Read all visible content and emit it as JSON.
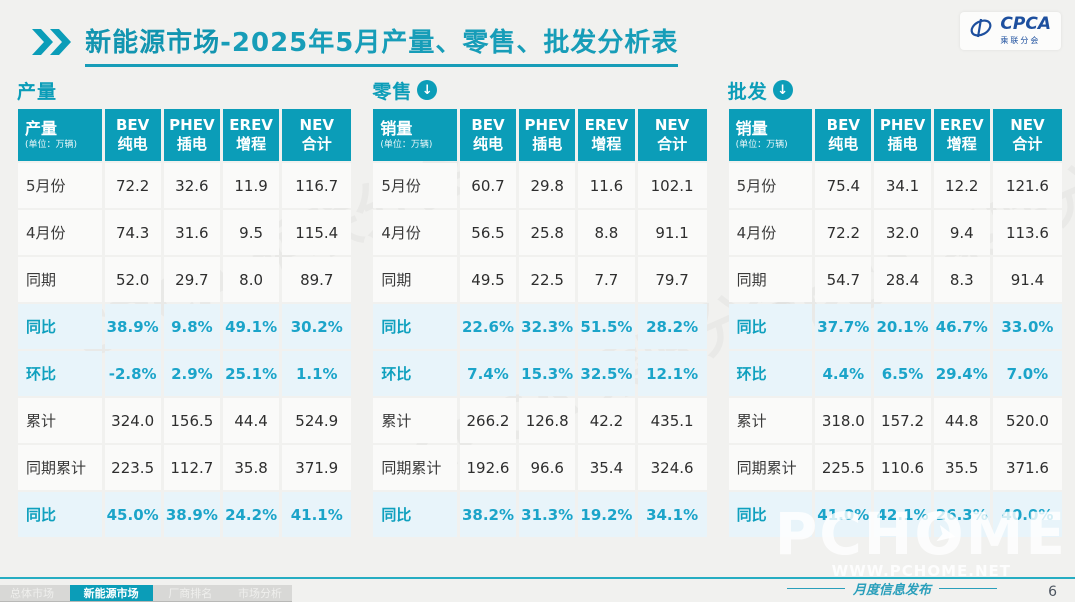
{
  "accent_color": "#0b9db8",
  "percent_text_color": "#1ba4c9",
  "percent_row_bg": "#e8f4fa",
  "header": {
    "title_bold": "新能源市场",
    "title_rest": "-2025年5月产量、零售、批发分析表",
    "logo_text": "CPCA",
    "logo_subtext": "乘联分会"
  },
  "table_columns": [
    {
      "line1": "BEV",
      "line2": "纯电"
    },
    {
      "line1": "PHEV",
      "line2": "插电"
    },
    {
      "line1": "EREV",
      "line2": "增程"
    },
    {
      "line1": "NEV",
      "line2": "合计"
    }
  ],
  "tables": [
    {
      "section_label": "产量",
      "arrow_icon": false,
      "corner_title": "产量",
      "corner_unit": "(单位：万辆)",
      "rows": [
        {
          "label": "5月份",
          "pct": false,
          "values": [
            "72.2",
            "32.6",
            "11.9",
            "116.7"
          ]
        },
        {
          "label": "4月份",
          "pct": false,
          "values": [
            "74.3",
            "31.6",
            "9.5",
            "115.4"
          ]
        },
        {
          "label": "同期",
          "pct": false,
          "values": [
            "52.0",
            "29.7",
            "8.0",
            "89.7"
          ]
        },
        {
          "label": "同比",
          "pct": true,
          "values": [
            "38.9%",
            "9.8%",
            "49.1%",
            "30.2%"
          ]
        },
        {
          "label": "环比",
          "pct": true,
          "values": [
            "-2.8%",
            "2.9%",
            "25.1%",
            "1.1%"
          ]
        },
        {
          "label": "累计",
          "pct": false,
          "values": [
            "324.0",
            "156.5",
            "44.4",
            "524.9"
          ]
        },
        {
          "label": "同期累计",
          "pct": false,
          "values": [
            "223.5",
            "112.7",
            "35.8",
            "371.9"
          ]
        },
        {
          "label": "同比",
          "pct": true,
          "values": [
            "45.0%",
            "38.9%",
            "24.2%",
            "41.1%"
          ]
        }
      ]
    },
    {
      "section_label": "零售",
      "arrow_icon": true,
      "corner_title": "销量",
      "corner_unit": "(单位：万辆)",
      "rows": [
        {
          "label": "5月份",
          "pct": false,
          "values": [
            "60.7",
            "29.8",
            "11.6",
            "102.1"
          ]
        },
        {
          "label": "4月份",
          "pct": false,
          "values": [
            "56.5",
            "25.8",
            "8.8",
            "91.1"
          ]
        },
        {
          "label": "同期",
          "pct": false,
          "values": [
            "49.5",
            "22.5",
            "7.7",
            "79.7"
          ]
        },
        {
          "label": "同比",
          "pct": true,
          "values": [
            "22.6%",
            "32.3%",
            "51.5%",
            "28.2%"
          ]
        },
        {
          "label": "环比",
          "pct": true,
          "values": [
            "7.4%",
            "15.3%",
            "32.5%",
            "12.1%"
          ]
        },
        {
          "label": "累计",
          "pct": false,
          "values": [
            "266.2",
            "126.8",
            "42.2",
            "435.1"
          ]
        },
        {
          "label": "同期累计",
          "pct": false,
          "values": [
            "192.6",
            "96.6",
            "35.4",
            "324.6"
          ]
        },
        {
          "label": "同比",
          "pct": true,
          "values": [
            "38.2%",
            "31.3%",
            "19.2%",
            "34.1%"
          ]
        }
      ]
    },
    {
      "section_label": "批发",
      "arrow_icon": true,
      "corner_title": "销量",
      "corner_unit": "(单位：万辆)",
      "rows": [
        {
          "label": "5月份",
          "pct": false,
          "values": [
            "75.4",
            "34.1",
            "12.2",
            "121.6"
          ]
        },
        {
          "label": "4月份",
          "pct": false,
          "values": [
            "72.2",
            "32.0",
            "9.4",
            "113.6"
          ]
        },
        {
          "label": "同期",
          "pct": false,
          "values": [
            "54.7",
            "28.4",
            "8.3",
            "91.4"
          ]
        },
        {
          "label": "同比",
          "pct": true,
          "values": [
            "37.7%",
            "20.1%",
            "46.7%",
            "33.0%"
          ]
        },
        {
          "label": "环比",
          "pct": true,
          "values": [
            "4.4%",
            "6.5%",
            "29.4%",
            "7.0%"
          ]
        },
        {
          "label": "累计",
          "pct": false,
          "values": [
            "318.0",
            "157.2",
            "44.8",
            "520.0"
          ]
        },
        {
          "label": "同期累计",
          "pct": false,
          "values": [
            "225.5",
            "110.6",
            "35.5",
            "371.6"
          ]
        },
        {
          "label": "同比",
          "pct": true,
          "values": [
            "41.0%",
            "42.1%",
            "26.3%",
            "40.0%"
          ]
        }
      ]
    }
  ],
  "footer": {
    "tabs": [
      {
        "label": "总体市场",
        "active": false
      },
      {
        "label": "新能源市场",
        "active": true
      },
      {
        "label": "厂商排名",
        "active": false
      },
      {
        "label": "市场分析",
        "active": false
      }
    ],
    "caption": "月度信息发布",
    "page_number": "6"
  },
  "watermark": {
    "ghost": "CPCA 乘联分会",
    "big": "PCHOME",
    "url": "WWW.PCHOME.NET"
  }
}
